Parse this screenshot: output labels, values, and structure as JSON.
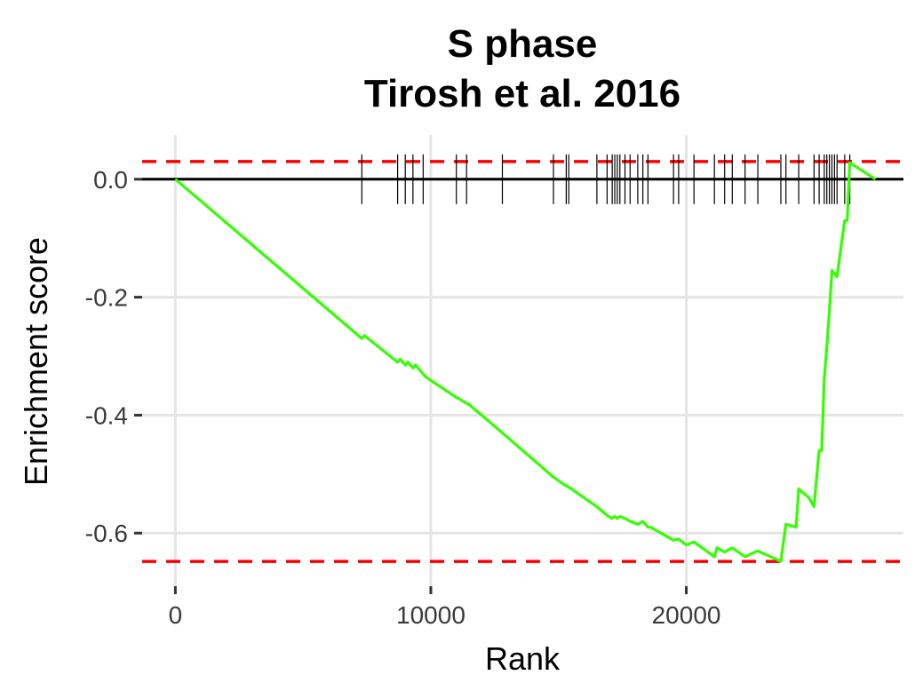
{
  "chart_data": {
    "type": "line",
    "title": [
      "S phase",
      "Tirosh et al. 2016"
    ],
    "xlabel": "Rank",
    "ylabel": "Enrichment score",
    "xlim": [
      -1300,
      28500
    ],
    "ylim": [
      -0.69,
      0.075
    ],
    "x_ticks": [
      0,
      10000,
      20000
    ],
    "x_tick_labels": [
      "0",
      "10000",
      "20000"
    ],
    "y_ticks": [
      0.0,
      -0.2,
      -0.4,
      -0.6
    ],
    "y_tick_labels": [
      "0.0",
      "-0.2",
      "-0.4",
      "-0.6"
    ],
    "grid": true,
    "colors": {
      "curve": "#33ff00",
      "dashed": "#ff0000",
      "zero_line": "#000000",
      "rug": "#000000",
      "grid": "#e5e5e5"
    },
    "reference_lines": {
      "zero": 0.0,
      "upper_dashed": 0.03,
      "lower_dashed": -0.648
    },
    "hit_ranks": [
      7300,
      8700,
      9000,
      9300,
      9700,
      11000,
      11400,
      12800,
      14800,
      15300,
      15400,
      16500,
      16900,
      17100,
      17200,
      17300,
      17400,
      17600,
      17800,
      18100,
      18300,
      18500,
      19500,
      19700,
      20300,
      21100,
      21500,
      21800,
      22300,
      22800,
      23700,
      23900,
      24400,
      25000,
      25200,
      25400,
      25500,
      25600,
      25700,
      25800,
      25900,
      26200,
      26400
    ],
    "series": [
      {
        "x": [
          0,
          7300,
          7400,
          8700,
          8800,
          9000,
          9100,
          9300,
          9400,
          9700,
          9800,
          11000,
          11100,
          11400,
          11500,
          12800,
          14800,
          15300,
          15400,
          16500,
          16900,
          17100,
          17200,
          17300,
          17400,
          17600,
          17800,
          18100,
          18300,
          18500,
          18600,
          19500,
          19700,
          20000,
          20300,
          21100,
          21200,
          21500,
          21800,
          22300,
          22800,
          23700,
          23900,
          24300,
          24400,
          24800,
          25000,
          25200,
          25300,
          25400,
          25500,
          25600,
          25700,
          25800,
          25900,
          26200,
          26300,
          26400,
          27400
        ],
        "y": [
          0.0,
          -0.27,
          -0.265,
          -0.31,
          -0.305,
          -0.315,
          -0.31,
          -0.32,
          -0.315,
          -0.33,
          -0.335,
          -0.37,
          -0.372,
          -0.38,
          -0.382,
          -0.43,
          -0.505,
          -0.52,
          -0.522,
          -0.555,
          -0.57,
          -0.575,
          -0.572,
          -0.575,
          -0.572,
          -0.575,
          -0.58,
          -0.585,
          -0.58,
          -0.59,
          -0.59,
          -0.612,
          -0.61,
          -0.62,
          -0.615,
          -0.64,
          -0.625,
          -0.632,
          -0.625,
          -0.64,
          -0.63,
          -0.648,
          -0.585,
          -0.59,
          -0.525,
          -0.54,
          -0.555,
          -0.46,
          -0.46,
          -0.34,
          -0.285,
          -0.225,
          -0.155,
          -0.16,
          -0.165,
          -0.07,
          -0.07,
          0.028,
          0.0
        ]
      }
    ]
  }
}
